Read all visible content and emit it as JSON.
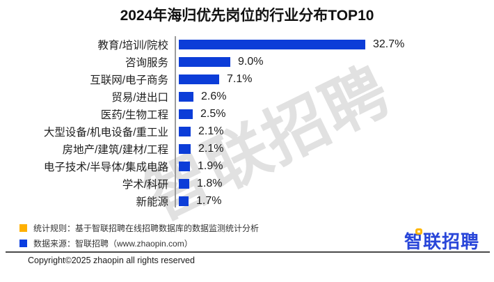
{
  "title": "2024年海归优先岗位的行业分布TOP10",
  "watermark": {
    "text": "智联招聘",
    "color": "#9e9e9e"
  },
  "chart_data": {
    "type": "bar",
    "orientation": "horizontal",
    "title": "2024年海归优先岗位的行业分布TOP10",
    "categories": [
      "教育/培训/院校",
      "咨询服务",
      "互联网/电子商务",
      "贸易/进出口",
      "医药/生物工程",
      "大型设备/机电设备/重工业",
      "房地产/建筑/建材/工程",
      "电子技术/半导体/集成电路",
      "学术/科研",
      "新能源"
    ],
    "values": [
      32.7,
      9.0,
      7.1,
      2.6,
      2.5,
      2.1,
      2.1,
      1.9,
      1.8,
      1.7
    ],
    "value_labels": [
      "32.7%",
      "9.0%",
      "7.1%",
      "2.6%",
      "2.5%",
      "2.1%",
      "2.1%",
      "1.9%",
      "1.8%",
      "1.7%"
    ],
    "unit": "%",
    "xlim": [
      0,
      35
    ],
    "grid": false,
    "legend_position": "none",
    "sort": "descending",
    "bar_color": "#0c3dd8",
    "axis_line_color": "#9b9b9b"
  },
  "footer": {
    "notes": [
      {
        "swatch_color": "#ffb000",
        "text": "统计规则：基于智联招聘在线招聘数据库的数据监测统计分析"
      },
      {
        "swatch_color": "#0a3ee0",
        "text": "数据来源：智联招聘（www.zhaopin.com）"
      }
    ],
    "copyright": "Copyright©2025 zhaopin all rights reserved",
    "logo": {
      "text": "智联招聘",
      "color": "#2946d9",
      "accent_color": "#ffb600"
    }
  }
}
